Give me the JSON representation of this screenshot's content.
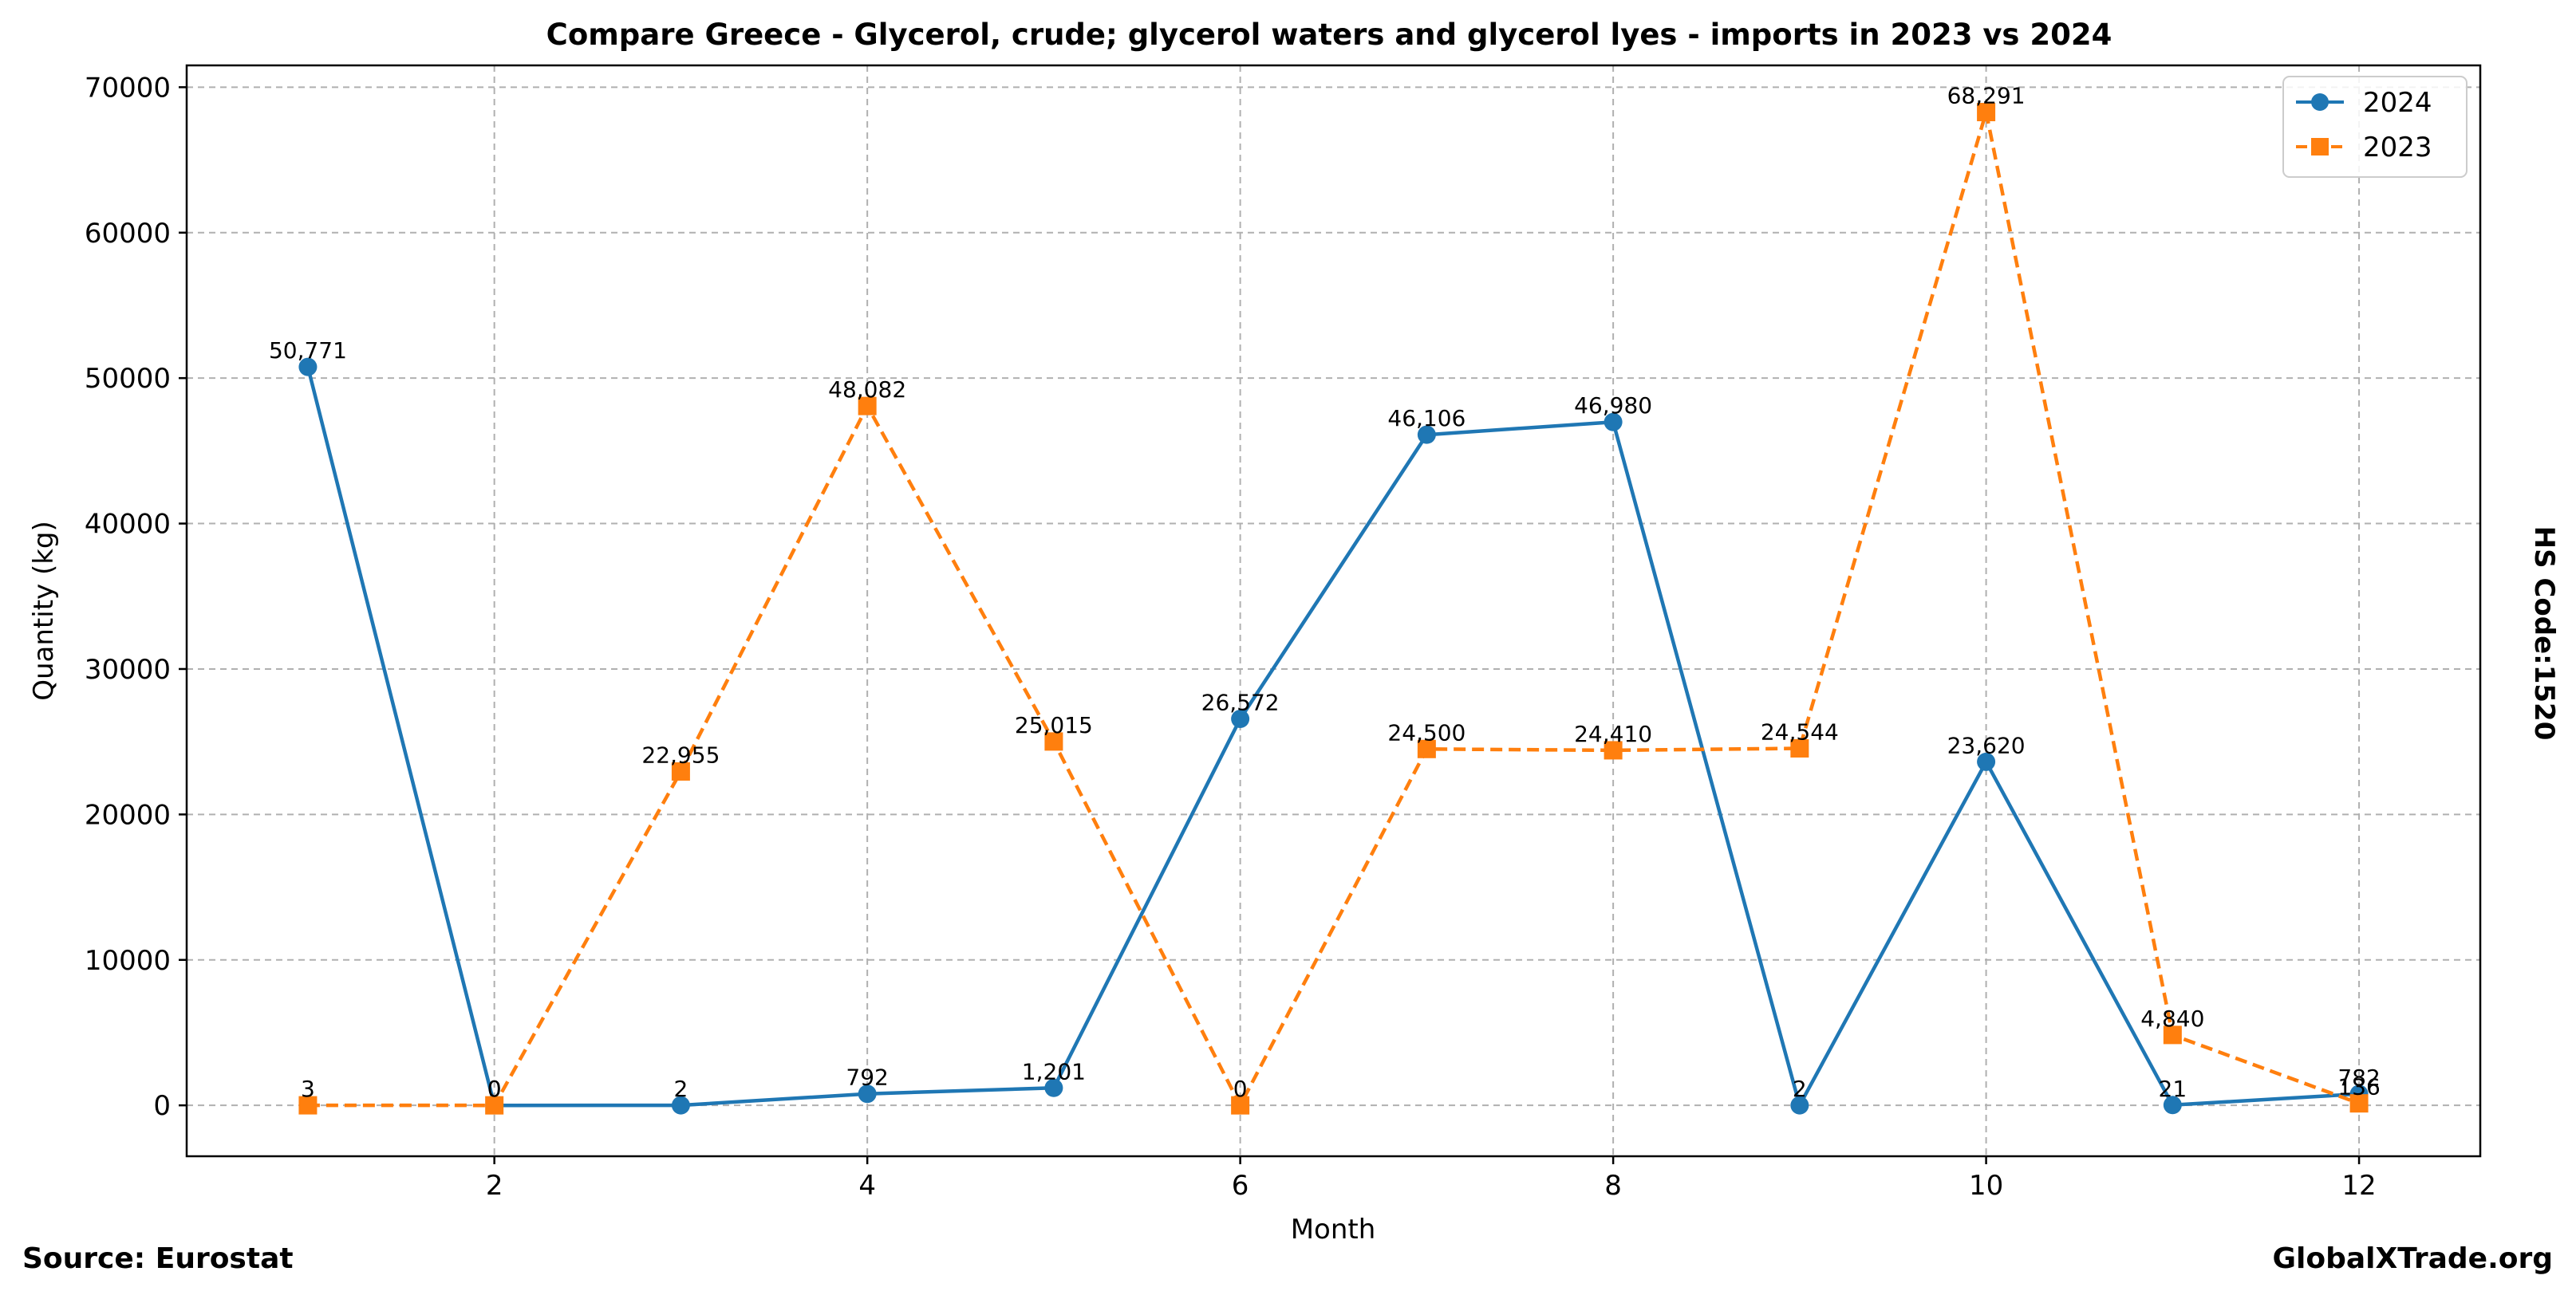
{
  "chart_data": {
    "type": "line",
    "title": "Compare Greece - Glycerol, crude; glycerol waters and glycerol lyes - imports in 2023 vs 2024",
    "xlabel": "Month",
    "ylabel": "Quantity (kg)",
    "x": [
      1,
      2,
      3,
      4,
      5,
      6,
      7,
      8,
      9,
      10,
      11,
      12
    ],
    "xticks": [
      2,
      4,
      6,
      8,
      10,
      12
    ],
    "yticks": [
      0,
      10000,
      20000,
      30000,
      40000,
      50000,
      60000,
      70000
    ],
    "xlim": [
      0.35,
      12.65
    ],
    "ylim": [
      -3500,
      71500
    ],
    "grid": true,
    "legend_position": "top-right",
    "series": [
      {
        "name": "2024",
        "color": "#1f77b4",
        "marker": "circle",
        "linestyle": "solid",
        "values": [
          50771,
          0,
          2,
          792,
          1201,
          26572,
          46106,
          46980,
          2,
          23620,
          21,
          782
        ],
        "labels": [
          "50,771",
          "0",
          "2",
          "792",
          "1,201",
          "26,572",
          "46,106",
          "46,980",
          "2",
          "23,620",
          "21",
          "782"
        ]
      },
      {
        "name": "2023",
        "color": "#ff7f0e",
        "marker": "square",
        "linestyle": "dashed",
        "values": [
          3,
          0,
          22955,
          48082,
          25015,
          0,
          24500,
          24410,
          24544,
          68291,
          4840,
          136
        ],
        "labels": [
          "3",
          "0",
          "22,955",
          "48,082",
          "25,015",
          "0",
          "24,500",
          "24,410",
          "24,544",
          "68,291",
          "4,840",
          "136"
        ]
      }
    ]
  },
  "side_label": "HS Code:1520",
  "footer": {
    "source": "Source: Eurostat",
    "brand": "GlobalXTrade.org"
  }
}
